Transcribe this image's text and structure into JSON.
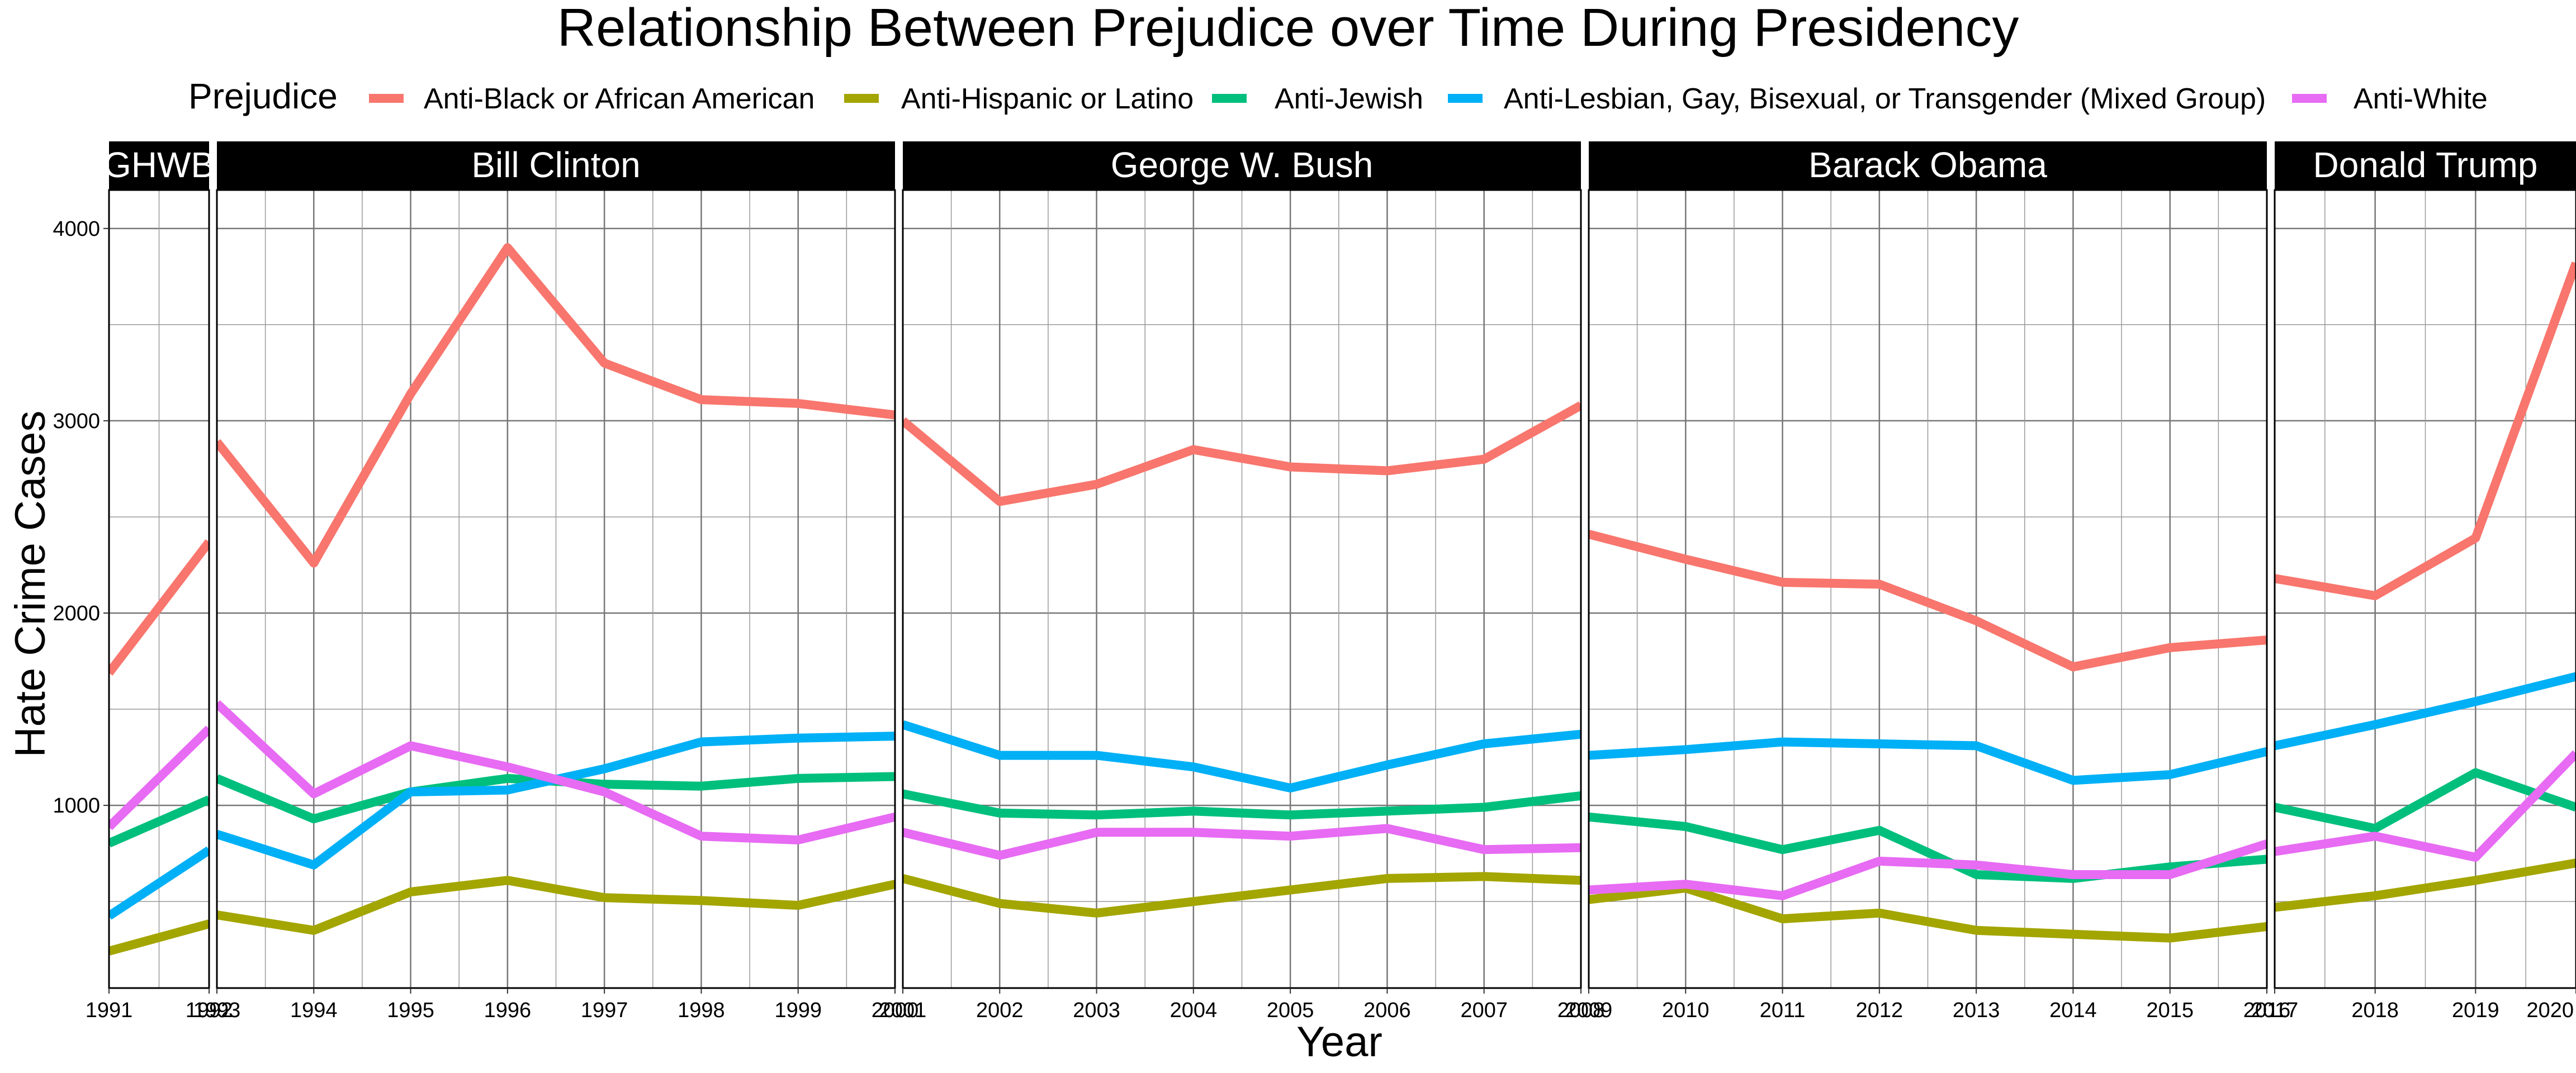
{
  "chart_data": {
    "type": "line",
    "title": "Relationship Between Prejudice over Time During Presidency",
    "xlabel": "Year",
    "ylabel": "Hate Crime Cases",
    "legend_title": "Prejudice",
    "legend_position": "top",
    "grid": true,
    "ylim": [
      50,
      4200
    ],
    "yticks": [
      1000,
      2000,
      3000,
      4000
    ],
    "series": [
      {
        "name": "Anti-Black or African American",
        "color": "#F8766D"
      },
      {
        "name": "Anti-Hispanic or Latino",
        "color": "#A3A500"
      },
      {
        "name": "Anti-Jewish",
        "color": "#00BF7D"
      },
      {
        "name": "Anti-Lesbian, Gay, Bisexual, or Transgender (Mixed Group)",
        "color": "#00B0F6"
      },
      {
        "name": "Anti-White",
        "color": "#E76BF3"
      }
    ],
    "panels": [
      {
        "label": "GHWB",
        "years": [
          1991,
          1992
        ],
        "values": [
          [
            1689,
            2370
          ],
          [
            242,
            384
          ],
          [
            803,
            1030
          ],
          [
            425,
            767
          ],
          [
            888,
            1398
          ]
        ]
      },
      {
        "label": "Bill Clinton",
        "years": [
          1993,
          1994,
          1995,
          1996,
          1997,
          1998,
          1999,
          2000
        ],
        "values": [
          [
            2890,
            2260,
            3140,
            3900,
            3300,
            3110,
            3090,
            3030
          ],
          [
            430,
            350,
            550,
            610,
            520,
            505,
            480,
            590
          ],
          [
            1140,
            930,
            1070,
            1140,
            1110,
            1100,
            1140,
            1150
          ],
          [
            850,
            690,
            1070,
            1080,
            1190,
            1330,
            1350,
            1360
          ],
          [
            1530,
            1060,
            1310,
            1200,
            1070,
            840,
            820,
            940
          ]
        ]
      },
      {
        "label": "George W. Bush",
        "years": [
          2001,
          2002,
          2003,
          2004,
          2005,
          2006,
          2007,
          2008
        ],
        "values": [
          [
            3000,
            2580,
            2670,
            2850,
            2760,
            2740,
            2800,
            3080
          ],
          [
            620,
            490,
            440,
            500,
            560,
            620,
            630,
            610
          ],
          [
            1060,
            960,
            950,
            970,
            950,
            970,
            990,
            1050
          ],
          [
            1420,
            1260,
            1260,
            1200,
            1090,
            1210,
            1320,
            1370
          ],
          [
            860,
            740,
            860,
            860,
            840,
            880,
            770,
            780
          ]
        ]
      },
      {
        "label": "Barack Obama",
        "years": [
          2009,
          2010,
          2011,
          2012,
          2013,
          2014,
          2015,
          2016
        ],
        "values": [
          [
            2410,
            2280,
            2160,
            2150,
            1960,
            1720,
            1820,
            1860
          ],
          [
            510,
            570,
            410,
            440,
            350,
            330,
            310,
            370
          ],
          [
            940,
            890,
            770,
            870,
            640,
            620,
            680,
            720
          ],
          [
            1260,
            1290,
            1330,
            1320,
            1310,
            1130,
            1160,
            1280
          ],
          [
            560,
            590,
            530,
            710,
            690,
            640,
            640,
            800
          ]
        ]
      },
      {
        "label": "Donald Trump",
        "years": [
          2017,
          2018,
          2019,
          2020
        ],
        "values": [
          [
            2180,
            2090,
            2390,
            3820
          ],
          [
            470,
            530,
            610,
            700
          ],
          [
            990,
            880,
            1170,
            990
          ],
          [
            1310,
            1420,
            1540,
            1670
          ],
          [
            760,
            840,
            730,
            1270
          ]
        ]
      }
    ]
  }
}
